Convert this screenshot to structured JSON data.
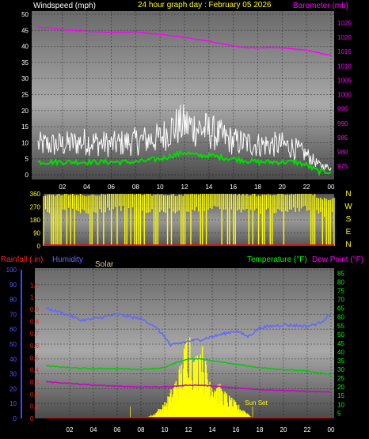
{
  "header": {
    "title": "24 hour graph day : February 05 2026",
    "left_label": "Windspeed (mph)",
    "right_label": "Barometer (mb)"
  },
  "colors": {
    "windspeed": "#ffffff",
    "wind_avg": "#00dd00",
    "barometer": "#ff00ff",
    "direction": "#ffff00",
    "rainfall": "#ff0000",
    "humidity": "#6666ff",
    "solar": "#ffff00",
    "temperature": "#00cc00",
    "dew_point": "#cc00cc",
    "axis_windspeed": "#ffffff",
    "axis_baro": "#ff00ff",
    "axis_direction": "#ffff00",
    "axis_rain": "#ff2222",
    "axis_humidity": "#5555ff",
    "axis_temp": "#00ff00"
  },
  "chart_data": [
    {
      "type": "line",
      "name": "wind-barometer",
      "title": "24 hour graph day : February 05 2026",
      "xlabel": "",
      "x_ticks": [
        "02",
        "04",
        "06",
        "08",
        "10",
        "12",
        "14",
        "16",
        "18",
        "20",
        "22",
        "00"
      ],
      "ylabel": "Windspeed (mph)",
      "ylim": [
        0,
        50
      ],
      "y_ticks": [
        0,
        5,
        10,
        15,
        20,
        25,
        30,
        35,
        40,
        45,
        50
      ],
      "y2label": "Barometer (mb)",
      "y2lim": [
        972,
        1028
      ],
      "y2_ticks": [
        975,
        980,
        985,
        990,
        995,
        1000,
        1005,
        1010,
        1015,
        1020,
        1025
      ],
      "grid": true,
      "series": [
        {
          "name": "Windspeed (mph)",
          "x": [
            0,
            2,
            4,
            6,
            8,
            10,
            11,
            12,
            13,
            14,
            16,
            18,
            20,
            21,
            22,
            23,
            24
          ],
          "values": [
            9,
            9,
            10,
            9,
            10,
            11,
            14,
            15,
            14,
            13,
            10,
            9,
            9,
            8,
            6,
            3,
            2
          ]
        },
        {
          "name": "Wind avg",
          "x": [
            0,
            2,
            4,
            6,
            8,
            10,
            11,
            12,
            13,
            14,
            16,
            18,
            20,
            21,
            22,
            23,
            24
          ],
          "values": [
            4,
            4,
            4,
            4,
            4,
            5,
            6,
            7,
            6,
            6,
            5,
            4,
            4,
            4,
            3,
            1,
            1
          ]
        },
        {
          "name": "Barometer (mb)",
          "x": [
            0,
            1,
            2,
            4,
            6,
            8,
            10,
            12,
            14,
            15,
            16,
            17,
            18,
            19,
            20,
            22,
            24
          ],
          "values": [
            1023.5,
            1023.3,
            1022.6,
            1022,
            1021.6,
            1021.8,
            1021,
            1019.9,
            1018.6,
            1017.7,
            1016.9,
            1016.4,
            1016.3,
            1016.4,
            1016.3,
            1015.5,
            1013.6
          ]
        }
      ]
    },
    {
      "type": "area",
      "name": "wind-direction",
      "x_ticks": [
        "02",
        "04",
        "06",
        "08",
        "10",
        "12",
        "14",
        "16",
        "18",
        "20",
        "22",
        "00"
      ],
      "ylim": [
        0,
        360
      ],
      "y_ticks": [
        0,
        90,
        180,
        270,
        360
      ],
      "right_labels": [
        "N",
        "W",
        "S",
        "E",
        "N"
      ],
      "grid": true,
      "series": [
        {
          "name": "Wind direction",
          "x": [
            0,
            2,
            4,
            6,
            8,
            10,
            12,
            14,
            16,
            18,
            20,
            22,
            23,
            24
          ],
          "values": [
            300,
            310,
            300,
            320,
            310,
            300,
            305,
            320,
            310,
            300,
            310,
            320,
            270,
            280
          ]
        }
      ]
    },
    {
      "type": "line",
      "name": "temperature-humidity-rain-solar",
      "legend_left": [
        "Rainfall (.in)",
        "Humidity",
        "Solar"
      ],
      "legend_right": [
        "Temperature (°F)",
        "Dew Point (°F)"
      ],
      "x_ticks": [
        "02",
        "04",
        "06",
        "08",
        "10",
        "12",
        "14",
        "16",
        "18",
        "20",
        "22",
        "00"
      ],
      "humidity_ticks": [
        0,
        10,
        20,
        30,
        40,
        50,
        60,
        70,
        80,
        90,
        100
      ],
      "rain_ticks": [
        0,
        0.1,
        0.2,
        0.3,
        0.4,
        0.5,
        0.6,
        0.7,
        0.8,
        0.9,
        1,
        1.1
      ],
      "temp_ticks": [
        5,
        10,
        15,
        20,
        25,
        30,
        35,
        40,
        45,
        50,
        55,
        60,
        65,
        70,
        75,
        80,
        85
      ],
      "rain_lim": [
        0,
        1.2
      ],
      "humidity_lim": [
        0,
        100
      ],
      "temp_lim": [
        2,
        87
      ],
      "annotations": [
        {
          "text": "Sun Set",
          "x": 17.7
        }
      ],
      "grid": true,
      "series": [
        {
          "name": "Humidity",
          "x": [
            0,
            1,
            2,
            3,
            4,
            6,
            8,
            9,
            10,
            10.5,
            11,
            12,
            13,
            14,
            15,
            16,
            17,
            18,
            20,
            22,
            23,
            24
          ],
          "values": [
            74,
            72,
            69,
            66,
            67,
            70,
            67,
            63,
            55,
            49,
            50,
            52,
            53,
            55,
            57,
            59,
            55,
            61,
            63,
            62,
            64,
            70
          ]
        },
        {
          "name": "Temperature (°F)",
          "x": [
            0,
            2,
            4,
            6,
            8,
            10,
            11,
            12,
            13,
            14,
            15,
            16,
            17,
            18,
            20,
            22,
            24
          ],
          "values": [
            32,
            31,
            30.5,
            30.5,
            30,
            31,
            34,
            36,
            36,
            35,
            34,
            33,
            32,
            31,
            30,
            29,
            27
          ]
        },
        {
          "name": "Dew Point (°F)",
          "x": [
            0,
            2,
            4,
            6,
            8,
            10,
            11,
            12,
            13,
            14,
            15,
            16,
            17,
            18,
            20,
            22,
            24
          ],
          "values": [
            23,
            22,
            21,
            20.5,
            20,
            20,
            20.5,
            21,
            21,
            20.5,
            20,
            19.5,
            19,
            18.5,
            18,
            17.5,
            17
          ]
        },
        {
          "name": "Rainfall (.in)",
          "x": [
            0,
            24
          ],
          "values": [
            0,
            0
          ]
        },
        {
          "name": "Solar",
          "x": [
            8,
            9,
            10,
            10.5,
            11,
            11.5,
            12,
            12.5,
            13,
            13.5,
            14,
            15,
            16,
            17,
            17.5
          ],
          "values": [
            0,
            2,
            8,
            14,
            22,
            30,
            50,
            30,
            40,
            28,
            22,
            14,
            8,
            3,
            0
          ]
        }
      ]
    }
  ]
}
